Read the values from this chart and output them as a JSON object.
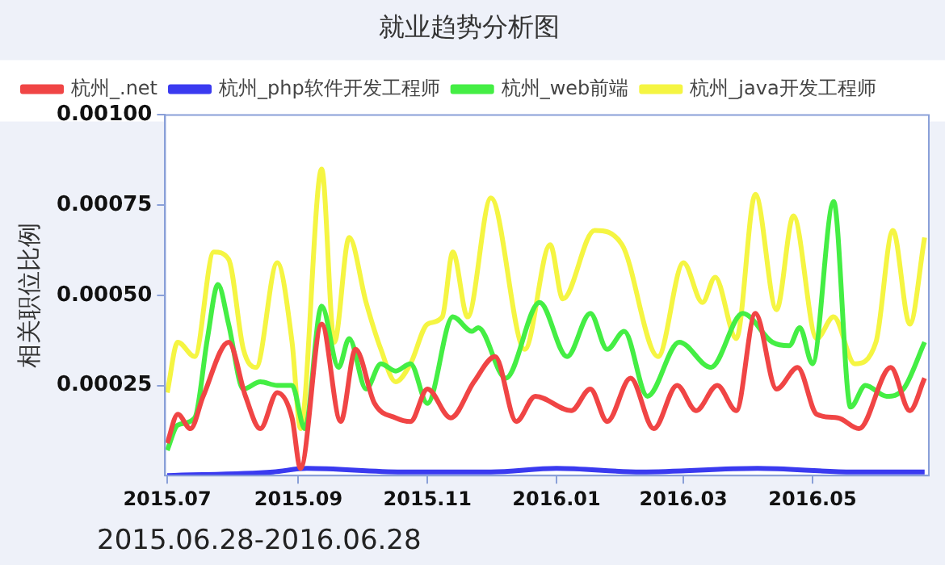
{
  "chart_data": {
    "type": "line",
    "title": "就业趋势分析图",
    "ylabel": "相关职位比例",
    "annotations": [
      "2015.06.28-2016.06.28"
    ],
    "xlim": [
      "2015-06-30",
      "2016-06-25"
    ],
    "xticks": [
      {
        "value": "2015-07-01",
        "label": "2015.07"
      },
      {
        "value": "2015-09-01",
        "label": "2015.09"
      },
      {
        "value": "2015-11-01",
        "label": "2015.11"
      },
      {
        "value": "2016-01-01",
        "label": "2016.01"
      },
      {
        "value": "2016-03-01",
        "label": "2016.03"
      },
      {
        "value": "2016-05-01",
        "label": "2016.05"
      }
    ],
    "ylim": [
      0,
      0.001
    ],
    "yticks": [
      {
        "value": 0.00025,
        "label": "0.00025"
      },
      {
        "value": 0.0005,
        "label": "0.00050"
      },
      {
        "value": 0.00075,
        "label": "0.00075"
      },
      {
        "value": 0.001,
        "label": "0.00100"
      }
    ],
    "grid": false,
    "legend": "top",
    "marker": "none",
    "line_style": "solid",
    "series": [
      {
        "name": "杭州_.net",
        "color": "#f04545",
        "x": [
          "2015-07-01",
          "2015-07-06",
          "2015-07-12",
          "2015-07-18",
          "2015-07-30",
          "2015-08-07",
          "2015-08-14",
          "2015-08-22",
          "2015-08-29",
          "2015-09-02",
          "2015-09-12",
          "2015-09-21",
          "2015-09-28",
          "2015-10-07",
          "2015-10-17",
          "2015-10-24",
          "2015-11-01",
          "2015-11-12",
          "2015-11-23",
          "2015-12-03",
          "2015-12-13",
          "2015-12-22",
          "2016-01-08",
          "2016-01-17",
          "2016-01-25",
          "2016-02-05",
          "2016-02-16",
          "2016-02-27",
          "2016-03-07",
          "2016-03-17",
          "2016-03-26",
          "2016-04-04",
          "2016-04-14",
          "2016-04-24",
          "2016-05-03",
          "2016-05-13",
          "2016-05-23",
          "2016-06-07",
          "2016-06-16",
          "2016-06-23"
        ],
        "values": [
          9e-05,
          0.00017,
          0.00013,
          0.00022,
          0.00037,
          0.00022,
          0.00013,
          0.00023,
          0.00016,
          2e-05,
          0.00042,
          0.00015,
          0.00035,
          0.0002,
          0.00016,
          0.00015,
          0.00024,
          0.00016,
          0.00026,
          0.00033,
          0.00015,
          0.00022,
          0.00018,
          0.00024,
          0.00015,
          0.00027,
          0.00013,
          0.00025,
          0.00018,
          0.00025,
          0.00018,
          0.00045,
          0.00024,
          0.0003,
          0.00017,
          0.00016,
          0.00013,
          0.0003,
          0.00018,
          0.00027
        ]
      },
      {
        "name": "杭州_php软件开发工程师",
        "color": "#3a3af0",
        "x": [
          "2015-07-01",
          "2015-08-20",
          "2015-09-05",
          "2015-10-20",
          "2015-12-01",
          "2016-01-01",
          "2016-02-10",
          "2016-04-05",
          "2016-05-20",
          "2016-06-23"
        ],
        "values": [
          0,
          1e-05,
          2e-05,
          1e-05,
          1e-05,
          2e-05,
          1e-05,
          2e-05,
          1e-05,
          1e-05
        ]
      },
      {
        "name": "杭州_web前端",
        "color": "#44ee44",
        "x": [
          "2015-07-01",
          "2015-07-06",
          "2015-07-14",
          "2015-07-20",
          "2015-07-25",
          "2015-07-30",
          "2015-08-06",
          "2015-08-14",
          "2015-08-22",
          "2015-08-29",
          "2015-09-04",
          "2015-09-12",
          "2015-09-20",
          "2015-09-25",
          "2015-10-03",
          "2015-10-10",
          "2015-10-17",
          "2015-10-24",
          "2015-11-01",
          "2015-11-13",
          "2015-11-22",
          "2015-11-25",
          "2015-12-08",
          "2015-12-24",
          "2016-01-06",
          "2016-01-17",
          "2016-01-25",
          "2016-02-02",
          "2016-02-13",
          "2016-02-28",
          "2016-03-14",
          "2016-03-29",
          "2016-04-12",
          "2016-04-20",
          "2016-04-25",
          "2016-05-01",
          "2016-05-11",
          "2016-05-19",
          "2016-05-26",
          "2016-06-05",
          "2016-06-13",
          "2016-06-23"
        ],
        "values": [
          7e-05,
          0.00014,
          0.00016,
          0.00038,
          0.00053,
          0.00042,
          0.00024,
          0.00026,
          0.00025,
          0.00025,
          0.00013,
          0.00047,
          0.0003,
          0.00038,
          0.00024,
          0.00031,
          0.00029,
          0.00031,
          0.0002,
          0.00044,
          0.0004,
          0.00041,
          0.00027,
          0.00048,
          0.00033,
          0.00045,
          0.00035,
          0.0004,
          0.00022,
          0.00037,
          0.0003,
          0.00045,
          0.00037,
          0.00036,
          0.00041,
          0.00031,
          0.00076,
          0.00019,
          0.00025,
          0.00022,
          0.00024,
          0.00037
        ]
      },
      {
        "name": "杭州_java开发工程师",
        "color": "#f5f542",
        "x": [
          "2015-07-01",
          "2015-07-06",
          "2015-07-14",
          "2015-07-23",
          "2015-07-30",
          "2015-08-06",
          "2015-08-12",
          "2015-08-22",
          "2015-08-29",
          "2015-09-02",
          "2015-09-12",
          "2015-09-18",
          "2015-09-25",
          "2015-10-03",
          "2015-10-10",
          "2015-10-17",
          "2015-10-24",
          "2015-11-01",
          "2015-11-08",
          "2015-11-13",
          "2015-11-20",
          "2015-12-01",
          "2015-12-17",
          "2015-12-29",
          "2016-01-04",
          "2016-01-19",
          "2016-02-01",
          "2016-02-18",
          "2016-03-01",
          "2016-03-10",
          "2016-03-16",
          "2016-03-26",
          "2016-04-04",
          "2016-04-14",
          "2016-04-22",
          "2016-05-03",
          "2016-05-11",
          "2016-05-21",
          "2016-05-31",
          "2016-06-08",
          "2016-06-16",
          "2016-06-23"
        ],
        "values": [
          0.00023,
          0.00037,
          0.00033,
          0.00062,
          0.0006,
          0.00035,
          0.0003,
          0.00059,
          0.00037,
          0.00013,
          0.00085,
          0.00037,
          0.00066,
          0.00048,
          0.00035,
          0.00026,
          0.00031,
          0.00042,
          0.00044,
          0.00062,
          0.00044,
          0.00077,
          0.00035,
          0.00064,
          0.00049,
          0.00068,
          0.00064,
          0.00033,
          0.00059,
          0.00048,
          0.00055,
          0.00038,
          0.00078,
          0.00046,
          0.00072,
          0.00038,
          0.00044,
          0.00031,
          0.00037,
          0.00068,
          0.00042,
          0.00066
        ]
      }
    ]
  }
}
